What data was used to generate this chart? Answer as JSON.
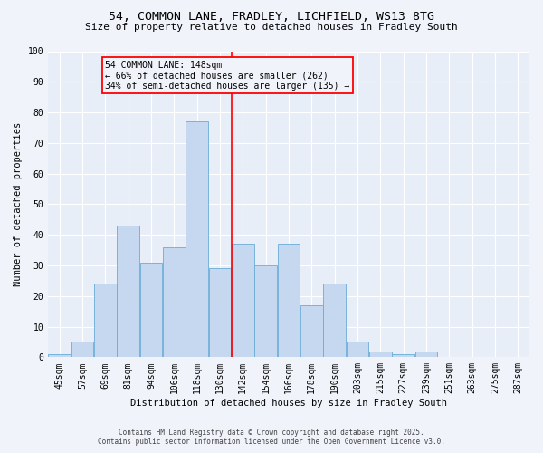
{
  "title_line1": "54, COMMON LANE, FRADLEY, LICHFIELD, WS13 8TG",
  "title_line2": "Size of property relative to detached houses in Fradley South",
  "xlabel": "Distribution of detached houses by size in Fradley South",
  "ylabel": "Number of detached properties",
  "footnote1": "Contains HM Land Registry data © Crown copyright and database right 2025.",
  "footnote2": "Contains public sector information licensed under the Open Government Licence v3.0.",
  "bin_labels": [
    "45sqm",
    "57sqm",
    "69sqm",
    "81sqm",
    "94sqm",
    "106sqm",
    "118sqm",
    "130sqm",
    "142sqm",
    "154sqm",
    "166sqm",
    "178sqm",
    "190sqm",
    "203sqm",
    "215sqm",
    "227sqm",
    "239sqm",
    "251sqm",
    "263sqm",
    "275sqm",
    "287sqm"
  ],
  "bar_values": [
    1,
    5,
    24,
    43,
    31,
    36,
    77,
    29,
    37,
    30,
    37,
    17,
    24,
    5,
    2,
    1,
    2,
    0,
    0,
    0,
    0
  ],
  "bar_color": "#c5d8f0",
  "bar_edgecolor": "#6aacd6",
  "vline_x_index": 7.5,
  "annotation_text1": "54 COMMON LANE: 148sqm",
  "annotation_text2": "← 66% of detached houses are smaller (262)",
  "annotation_text3": "34% of semi-detached houses are larger (135) →",
  "vline_color": "red",
  "box_edgecolor": "red",
  "ylim": [
    0,
    100
  ],
  "yticks": [
    0,
    10,
    20,
    30,
    40,
    50,
    60,
    70,
    80,
    90,
    100
  ],
  "figure_bg": "#f0f4fa",
  "plot_bg": "#e8eef7",
  "grid_color": "#ffffff",
  "title1_fontsize": 9.5,
  "title2_fontsize": 8,
  "tick_fontsize": 7,
  "ylabel_fontsize": 7.5,
  "xlabel_fontsize": 7.5,
  "annot_fontsize": 7,
  "footnote_fontsize": 5.5
}
